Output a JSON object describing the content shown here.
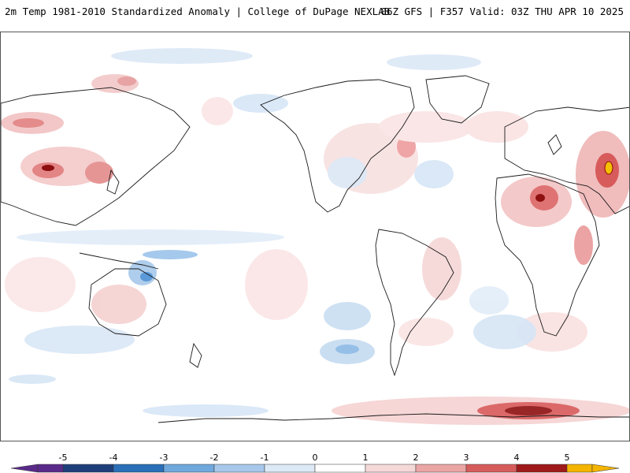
{
  "header": {
    "title": "2m Temp 1981-2010 Standardized Anomaly | College of DuPage NEXLAB",
    "run_info": "06Z GFS | F357 Valid: 03Z THU APR 10 2025"
  },
  "legend": {
    "labels": [
      "-5",
      "-4",
      "-3",
      "-2",
      "-1",
      "0",
      "1",
      "2",
      "3",
      "4",
      "5"
    ],
    "colors": [
      "#5a2a8a",
      "#1f3f7a",
      "#2a6fb8",
      "#4f9ad6",
      "#a7c8ea",
      "#dde9f6",
      "#ffffff",
      "#f5d8d8",
      "#eaa5a5",
      "#d65c5c",
      "#b32020",
      "#7a0a0a",
      "#f4b400"
    ]
  },
  "colors": {
    "land_outline": "#1a1a1a",
    "warm_light": "#f7d6d6",
    "warm_mid": "#ec9f9f",
    "warm_strong": "#d24545",
    "warm_extreme": "#8b0e0e",
    "cold_light": "#d6e6f6",
    "cold_mid": "#9cc4ea",
    "cold_strong": "#4a8fd4",
    "yellow": "#f4c000"
  }
}
